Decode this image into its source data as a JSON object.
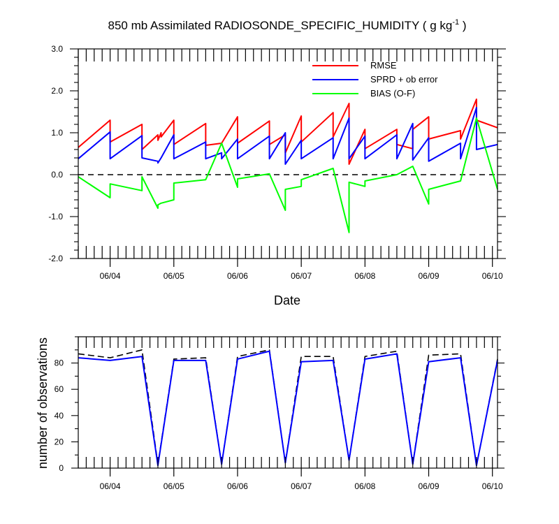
{
  "chart_data": [
    {
      "type": "line",
      "title": {
        "prefix": "850 mb Assimilated RADIOSONDE_SPECIFIC_HUMIDITY ( g kg",
        "superscript": "-1",
        "suffix": " )"
      },
      "xlabel": "Date",
      "ylabel": "",
      "xlim": [
        0,
        6.58
      ],
      "ylim": [
        -2,
        3
      ],
      "y_ticks": [
        -2,
        -1,
        0,
        1,
        2,
        3
      ],
      "y_tick_labels": [
        "-2.0",
        "-1.0",
        "0.0",
        "1.0",
        "2.0",
        "3.0"
      ],
      "x_ticks": [
        0.5,
        1.5,
        2.5,
        3.5,
        4.5,
        5.5,
        6.5
      ],
      "x_tick_labels": [
        "06/04",
        "06/05",
        "06/06",
        "06/07",
        "06/08",
        "06/09",
        "06/10"
      ],
      "zero_line": true,
      "legend": {
        "position": "top-right"
      },
      "series": [
        {
          "name": "RMSE",
          "color": "#ff0000",
          "points": [
            [
              0.0,
              0.65
            ],
            [
              0.5,
              1.3
            ],
            [
              0.5,
              0.78
            ],
            [
              1.0,
              1.2
            ],
            [
              1.0,
              0.6
            ],
            [
              1.25,
              0.95
            ],
            [
              1.25,
              0.82
            ],
            [
              1.3,
              1.0
            ],
            [
              1.3,
              0.9
            ],
            [
              1.5,
              1.3
            ],
            [
              1.5,
              0.72
            ],
            [
              2.0,
              1.22
            ],
            [
              2.0,
              0.7
            ],
            [
              2.25,
              0.75
            ],
            [
              2.5,
              1.38
            ],
            [
              2.5,
              0.75
            ],
            [
              3.0,
              1.28
            ],
            [
              3.0,
              0.72
            ],
            [
              3.25,
              0.95
            ],
            [
              3.25,
              0.52
            ],
            [
              3.5,
              1.4
            ],
            [
              3.5,
              0.78
            ],
            [
              4.0,
              1.48
            ],
            [
              4.0,
              0.9
            ],
            [
              4.25,
              1.7
            ],
            [
              4.25,
              0.25
            ],
            [
              4.5,
              1.08
            ],
            [
              4.5,
              0.62
            ],
            [
              5.0,
              1.08
            ],
            [
              5.0,
              0.72
            ],
            [
              5.25,
              0.62
            ],
            [
              5.25,
              1.08
            ],
            [
              5.5,
              1.38
            ],
            [
              5.5,
              0.85
            ],
            [
              6.0,
              1.05
            ],
            [
              6.0,
              0.85
            ],
            [
              6.25,
              1.8
            ],
            [
              6.25,
              1.3
            ],
            [
              6.58,
              1.12
            ]
          ]
        },
        {
          "name": "SPRD + ob error",
          "color": "#0000ff",
          "points": [
            [
              0.0,
              0.38
            ],
            [
              0.5,
              1.02
            ],
            [
              0.5,
              0.38
            ],
            [
              1.0,
              0.93
            ],
            [
              1.0,
              0.4
            ],
            [
              1.25,
              0.32
            ],
            [
              1.25,
              0.28
            ],
            [
              1.3,
              0.4
            ],
            [
              1.5,
              0.95
            ],
            [
              1.5,
              0.38
            ],
            [
              2.0,
              0.78
            ],
            [
              2.0,
              0.38
            ],
            [
              2.25,
              0.52
            ],
            [
              2.25,
              0.38
            ],
            [
              2.5,
              0.85
            ],
            [
              2.5,
              0.38
            ],
            [
              3.0,
              0.92
            ],
            [
              3.0,
              0.38
            ],
            [
              3.25,
              1.0
            ],
            [
              3.25,
              0.25
            ],
            [
              3.5,
              0.82
            ],
            [
              3.5,
              0.38
            ],
            [
              4.0,
              0.88
            ],
            [
              4.0,
              0.38
            ],
            [
              4.25,
              1.35
            ],
            [
              4.25,
              0.38
            ],
            [
              4.5,
              0.92
            ],
            [
              4.5,
              0.38
            ],
            [
              5.0,
              0.95
            ],
            [
              5.0,
              0.38
            ],
            [
              5.25,
              1.22
            ],
            [
              5.25,
              0.35
            ],
            [
              5.5,
              0.88
            ],
            [
              5.5,
              0.32
            ],
            [
              6.0,
              0.75
            ],
            [
              6.0,
              0.38
            ],
            [
              6.25,
              1.6
            ],
            [
              6.25,
              0.6
            ],
            [
              6.58,
              0.72
            ]
          ]
        },
        {
          "name": "BIAS (O-F)",
          "color": "#00ff00",
          "points": [
            [
              0.0,
              -0.05
            ],
            [
              0.5,
              -0.55
            ],
            [
              0.5,
              -0.22
            ],
            [
              1.0,
              -0.38
            ],
            [
              1.0,
              -0.05
            ],
            [
              1.25,
              -0.8
            ],
            [
              1.25,
              -0.72
            ],
            [
              1.3,
              -0.68
            ],
            [
              1.5,
              -0.6
            ],
            [
              1.5,
              -0.2
            ],
            [
              2.0,
              -0.12
            ],
            [
              2.25,
              0.75
            ],
            [
              2.5,
              -0.3
            ],
            [
              2.5,
              -0.1
            ],
            [
              3.0,
              0.02
            ],
            [
              3.25,
              -0.85
            ],
            [
              3.25,
              -0.35
            ],
            [
              3.5,
              -0.28
            ],
            [
              3.5,
              -0.12
            ],
            [
              4.0,
              0.15
            ],
            [
              4.25,
              -1.38
            ],
            [
              4.25,
              -0.18
            ],
            [
              4.5,
              -0.28
            ],
            [
              4.5,
              -0.15
            ],
            [
              5.0,
              0.0
            ],
            [
              5.25,
              0.2
            ],
            [
              5.5,
              -0.7
            ],
            [
              5.5,
              -0.35
            ],
            [
              6.0,
              -0.15
            ],
            [
              6.25,
              1.35
            ],
            [
              6.58,
              -0.35
            ]
          ]
        }
      ]
    },
    {
      "type": "line",
      "ylabel": "number of observations",
      "xlim": [
        0,
        6.58
      ],
      "ylim": [
        0,
        100
      ],
      "y_ticks": [
        0,
        20,
        40,
        60,
        80
      ],
      "y_tick_labels": [
        "0",
        "20",
        "40",
        "60",
        "80"
      ],
      "x_ticks": [
        0.5,
        1.5,
        2.5,
        3.5,
        4.5,
        5.5,
        6.5
      ],
      "x_tick_labels": [
        "06/04",
        "06/05",
        "06/06",
        "06/07",
        "06/08",
        "06/09",
        "06/10"
      ],
      "series": [
        {
          "style": "dashed",
          "color": "#000000",
          "points": [
            [
              0.0,
              87
            ],
            [
              0.5,
              84
            ],
            [
              1.0,
              90
            ],
            [
              1.25,
              3
            ],
            [
              1.5,
              83
            ],
            [
              2.0,
              84
            ],
            [
              2.25,
              3
            ],
            [
              2.5,
              85
            ],
            [
              3.0,
              90
            ],
            [
              3.25,
              4
            ],
            [
              3.5,
              85
            ],
            [
              4.0,
              85
            ],
            [
              4.25,
              6
            ],
            [
              4.5,
              85
            ],
            [
              5.0,
              89
            ],
            [
              5.25,
              3
            ],
            [
              5.5,
              86
            ],
            [
              6.0,
              87
            ],
            [
              6.25,
              2
            ],
            [
              6.58,
              83
            ]
          ]
        },
        {
          "style": "solid",
          "color": "#0000ff",
          "points": [
            [
              0.0,
              84
            ],
            [
              0.5,
              82
            ],
            [
              1.0,
              85
            ],
            [
              1.25,
              2
            ],
            [
              1.5,
              82
            ],
            [
              2.0,
              82
            ],
            [
              2.25,
              3
            ],
            [
              2.5,
              83
            ],
            [
              3.0,
              89
            ],
            [
              3.25,
              4
            ],
            [
              3.5,
              81
            ],
            [
              4.0,
              82
            ],
            [
              4.25,
              6
            ],
            [
              4.5,
              83
            ],
            [
              5.0,
              87
            ],
            [
              5.25,
              3
            ],
            [
              5.5,
              81
            ],
            [
              6.0,
              84
            ],
            [
              6.25,
              2
            ],
            [
              6.58,
              82
            ]
          ]
        }
      ]
    }
  ]
}
